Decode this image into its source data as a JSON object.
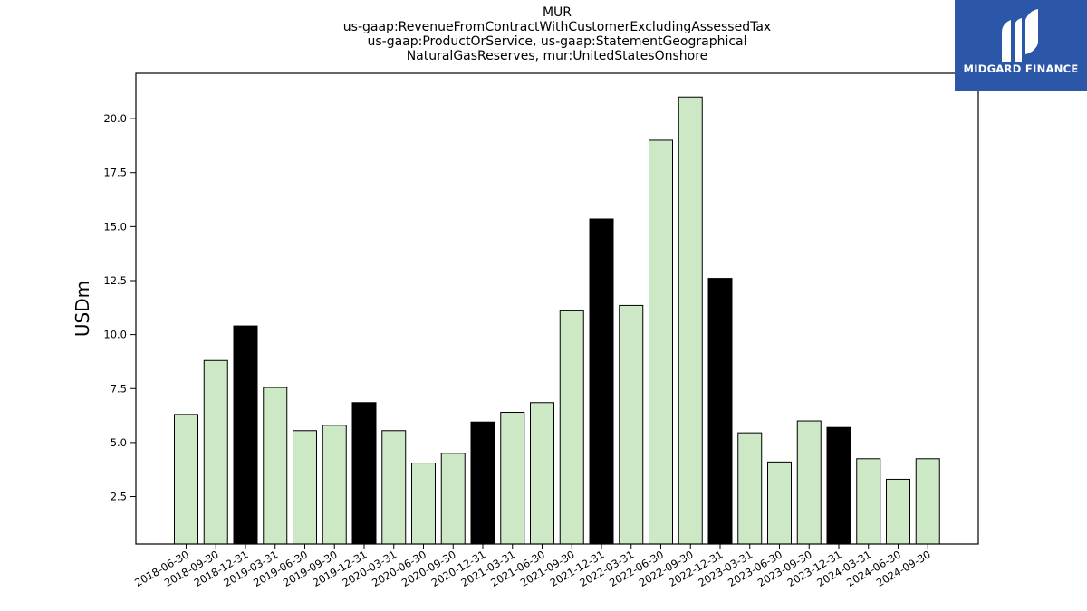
{
  "chart_data": {
    "type": "bar",
    "title_lines": [
      "MUR",
      "us-gaap:RevenueFromContractWithCustomerExcludingAssessedTax",
      "us-gaap:ProductOrService, us-gaap:StatementGeographical",
      "NaturalGasReserves, mur:UnitedStatesOnshore"
    ],
    "ylabel": "USDm",
    "xlabel": "",
    "ylim": [
      0.3,
      22.1
    ],
    "yticks": [
      "2.5",
      "5.0",
      "7.5",
      "10.0",
      "12.5",
      "15.0",
      "17.5",
      "20.0"
    ],
    "categories": [
      "2018-06-30",
      "2018-09-30",
      "2018-12-31",
      "2019-03-31",
      "2019-06-30",
      "2019-09-30",
      "2019-12-31",
      "2020-03-31",
      "2020-06-30",
      "2020-09-30",
      "2020-12-31",
      "2021-03-31",
      "2021-06-30",
      "2021-09-30",
      "2021-12-31",
      "2022-03-31",
      "2022-06-30",
      "2022-09-30",
      "2022-12-31",
      "2023-03-31",
      "2023-06-30",
      "2023-09-30",
      "2023-12-31",
      "2024-03-31",
      "2024-06-30",
      "2024-09-30"
    ],
    "values": [
      6.3,
      8.8,
      10.4,
      7.55,
      5.55,
      5.8,
      6.85,
      5.55,
      4.05,
      4.5,
      5.95,
      6.4,
      6.85,
      11.1,
      15.35,
      11.35,
      19.0,
      21.0,
      12.6,
      5.45,
      4.1,
      6.0,
      5.7,
      4.25,
      3.3,
      4.25
    ],
    "highlight": [
      false,
      false,
      true,
      false,
      false,
      false,
      true,
      false,
      false,
      false,
      true,
      false,
      false,
      false,
      true,
      false,
      false,
      false,
      true,
      false,
      false,
      false,
      true,
      false,
      false,
      false
    ],
    "colors": {
      "bar": "#cde8c4",
      "highlight": "#000000",
      "edge": "#000000"
    },
    "grid": false
  },
  "logo": {
    "text": "MIDGARD FINANCE",
    "background": "#2c57a8"
  }
}
